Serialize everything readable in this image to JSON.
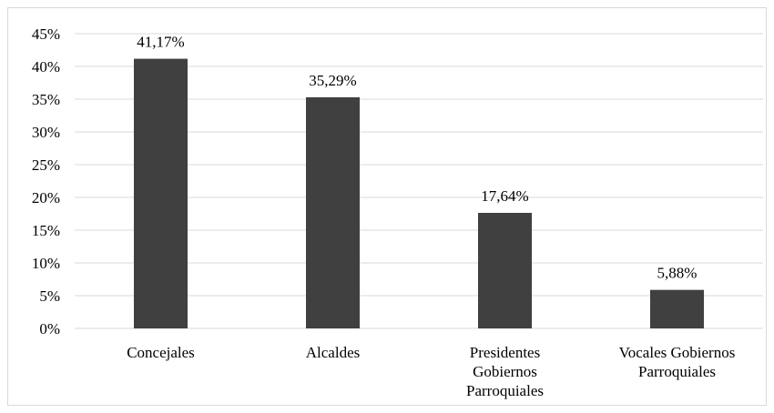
{
  "chart_data": {
    "type": "bar",
    "title": "",
    "xlabel": "",
    "ylabel": "",
    "categories": [
      [
        "Concejales"
      ],
      [
        "Alcaldes"
      ],
      [
        "Presidentes",
        "Gobiernos",
        "Parroquiales"
      ],
      [
        "Vocales Gobiernos",
        "Parroquiales"
      ]
    ],
    "values": [
      41.17,
      35.29,
      17.64,
      5.88
    ],
    "data_labels": [
      "41,17%",
      "35,29%",
      "17,64%",
      "5,88%"
    ],
    "ylim": [
      0,
      45
    ],
    "yticks": [
      0,
      5,
      10,
      15,
      20,
      25,
      30,
      35,
      40,
      45
    ],
    "ytick_labels": [
      "0%",
      "5%",
      "10%",
      "15%",
      "20%",
      "25%",
      "30%",
      "35%",
      "40%",
      "45%"
    ],
    "grid": true,
    "legend": "none",
    "colors": {
      "bar": "#404040",
      "grid": "#d9d9d9",
      "text": "#000000"
    }
  }
}
